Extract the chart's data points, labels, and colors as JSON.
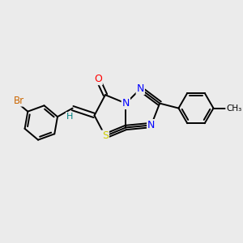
{
  "background_color": "#ebebeb",
  "bond_color": "#000000",
  "atom_colors": {
    "N": "#0000ff",
    "O": "#ff0000",
    "S": "#cccc00",
    "Br": "#cc6600",
    "H": "#008080",
    "C": "#000000"
  },
  "figsize": [
    3.0,
    3.0
  ],
  "dpi": 100
}
